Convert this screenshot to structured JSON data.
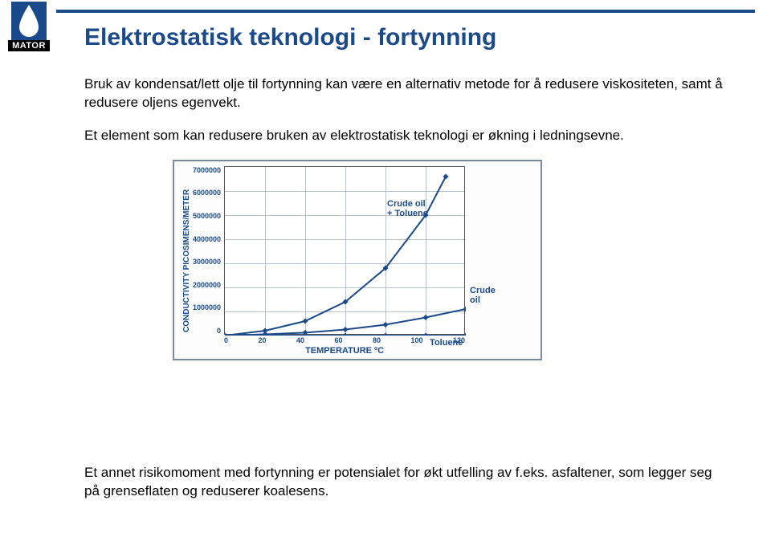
{
  "logo_text": "MATOR",
  "title": "Elektrostatisk teknologi - fortynning",
  "paragraph1": "Bruk av kondensat/lett olje til fortynning kan være en alternativ metode for å redusere viskositeten, samt å redusere oljens egenvekt.",
  "paragraph2": "Et element som kan redusere bruken av elektrostatisk teknologi er økning i ledningsevne.",
  "paragraph3": "Et annet risikomoment med fortynning er potensialet for økt utfelling av f.eks. asfaltener, som legger seg på grenseflaten og reduserer koalesens.",
  "chart": {
    "type": "line",
    "ylabel": "CONDUCTIVITY PICOSIMENS/METER",
    "xlabel": "TEMPERATURE",
    "xlabel_unit": "ºC",
    "ylim": [
      0,
      7000000
    ],
    "yticks": [
      7000000,
      6000000,
      5000000,
      4000000,
      3000000,
      2000000,
      1000000,
      0
    ],
    "xlim": [
      0,
      120
    ],
    "xticks": [
      0,
      20,
      40,
      60,
      80,
      100,
      120
    ],
    "grid_color": "#b8c0cc",
    "border_color": "#555555",
    "background_color": "#ffffff",
    "label_color": "#1a4a8a",
    "series": [
      {
        "name": "Crude oil + Toluene",
        "label": "Crude oil\n+ Toluene",
        "label_pos": {
          "x": 202,
          "y": 40
        },
        "color": "#1a4a8a",
        "line_width": 2,
        "marker": "diamond",
        "points": [
          {
            "x": 0,
            "y": 0
          },
          {
            "x": 20,
            "y": 200000
          },
          {
            "x": 40,
            "y": 600000
          },
          {
            "x": 60,
            "y": 1400000
          },
          {
            "x": 80,
            "y": 2800000
          },
          {
            "x": 100,
            "y": 5000000
          },
          {
            "x": 110,
            "y": 6600000
          }
        ]
      },
      {
        "name": "Crude oil",
        "label": "Crude oil",
        "label_pos": {
          "x": 305,
          "y": 148
        },
        "color": "#1a4a8a",
        "line_width": 2,
        "marker": "diamond",
        "points": [
          {
            "x": 0,
            "y": 0
          },
          {
            "x": 20,
            "y": 50000
          },
          {
            "x": 40,
            "y": 120000
          },
          {
            "x": 60,
            "y": 250000
          },
          {
            "x": 80,
            "y": 450000
          },
          {
            "x": 100,
            "y": 750000
          },
          {
            "x": 120,
            "y": 1100000
          }
        ]
      },
      {
        "name": "Toluene",
        "label": "Toluene",
        "label_pos": {
          "x": 255,
          "y": 213
        },
        "color": "#1a4a8a",
        "line_width": 2,
        "marker": "diamond",
        "points": [
          {
            "x": 0,
            "y": 0
          },
          {
            "x": 20,
            "y": 0
          },
          {
            "x": 40,
            "y": 0
          },
          {
            "x": 60,
            "y": 0
          },
          {
            "x": 80,
            "y": 0
          },
          {
            "x": 100,
            "y": 0
          },
          {
            "x": 120,
            "y": 0
          }
        ]
      }
    ]
  }
}
